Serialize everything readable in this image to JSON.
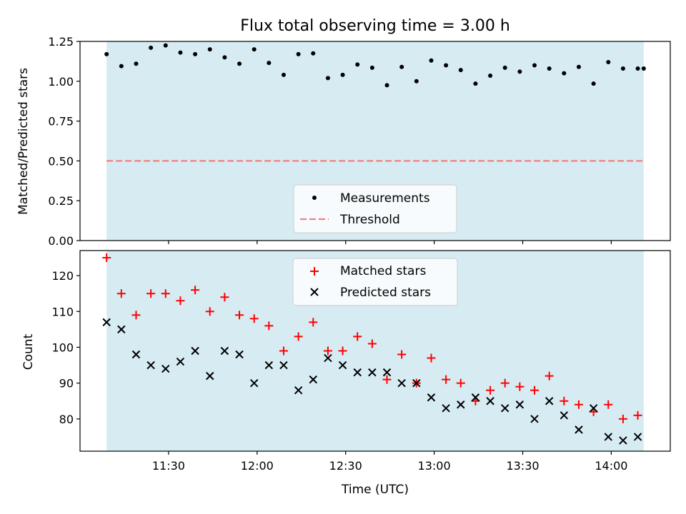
{
  "chart_data": [
    {
      "type": "scatter",
      "title": "Flux total observing time = 3.00 h",
      "ylabel": "Matched/Predicted stars",
      "ylim": [
        0,
        1.25
      ],
      "yticks": [
        "0.00",
        "0.25",
        "0.50",
        "0.75",
        "1.00",
        "1.25"
      ],
      "xlim_minutes": [
        660,
        860
      ],
      "shaded_span_minutes": [
        669,
        851
      ],
      "shade_color": "#add8e6",
      "legend_position": "lower center",
      "series": [
        {
          "name": "Measurements",
          "marker": "dot",
          "color": "#000000",
          "x_minutes": [
            669,
            674,
            679,
            684,
            689,
            694,
            699,
            704,
            709,
            714,
            719,
            724,
            729,
            734,
            739,
            744,
            749,
            754,
            759,
            764,
            769,
            774,
            779,
            784,
            789,
            794,
            799,
            804,
            809,
            814,
            819,
            824,
            829,
            834,
            839,
            844,
            849,
            851
          ],
          "values": [
            1.17,
            1.095,
            1.11,
            1.21,
            1.225,
            1.18,
            1.17,
            1.2,
            1.15,
            1.11,
            1.2,
            1.115,
            1.04,
            1.17,
            1.175,
            1.02,
            1.04,
            1.105,
            1.085,
            0.975,
            1.09,
            1.0,
            1.13,
            1.1,
            1.07,
            0.985,
            1.035,
            1.085,
            1.06,
            1.1,
            1.08,
            1.05,
            1.09,
            0.985,
            1.12,
            1.08,
            1.08,
            1.08
          ]
        },
        {
          "name": "Threshold",
          "marker": "dashed-line",
          "color": "#f08080",
          "value": 0.5
        }
      ]
    },
    {
      "type": "scatter",
      "title": "",
      "xlabel": "Time (UTC)",
      "ylabel": "Count",
      "ylim": [
        71,
        127
      ],
      "yticks": [
        "80",
        "90",
        "100",
        "110",
        "120"
      ],
      "xticks": [
        "11:30",
        "12:00",
        "12:30",
        "13:00",
        "13:30",
        "14:00"
      ],
      "xlim_minutes": [
        660,
        860
      ],
      "shaded_span_minutes": [
        669,
        851
      ],
      "shade_color": "#add8e6",
      "legend_position": "upper center",
      "series": [
        {
          "name": "Matched stars",
          "marker": "plus",
          "color": "#ff0000",
          "x_minutes": [
            669,
            674,
            679,
            684,
            689,
            694,
            699,
            704,
            709,
            714,
            719,
            724,
            729,
            734,
            739,
            744,
            749,
            754,
            759,
            764,
            769,
            774,
            779,
            784,
            789,
            794,
            799,
            804,
            809,
            814,
            819,
            824,
            829,
            834,
            839,
            844,
            849
          ],
          "values": [
            125,
            115,
            109,
            115,
            115,
            113,
            116,
            110,
            114,
            109,
            108,
            106,
            99,
            103,
            107,
            99,
            99,
            103,
            101,
            91,
            98,
            90,
            97,
            91,
            90,
            85,
            88,
            90,
            89,
            88,
            92,
            85,
            84,
            82,
            84,
            80,
            81
          ]
        },
        {
          "name": "Predicted stars",
          "marker": "x",
          "color": "#000000",
          "x_minutes": [
            669,
            674,
            679,
            684,
            689,
            694,
            699,
            704,
            709,
            714,
            719,
            724,
            729,
            734,
            739,
            744,
            749,
            754,
            759,
            764,
            769,
            774,
            779,
            784,
            789,
            794,
            799,
            804,
            809,
            814,
            819,
            824,
            829,
            834,
            839,
            844,
            849
          ],
          "values": [
            107,
            105,
            98,
            95,
            94,
            96,
            99,
            92,
            99,
            98,
            90,
            95,
            95,
            88,
            91,
            97,
            95,
            93,
            93,
            93,
            90,
            90,
            86,
            83,
            84,
            86,
            85,
            83,
            84,
            80,
            85,
            81,
            77,
            83,
            75,
            74,
            75
          ]
        }
      ]
    }
  ]
}
